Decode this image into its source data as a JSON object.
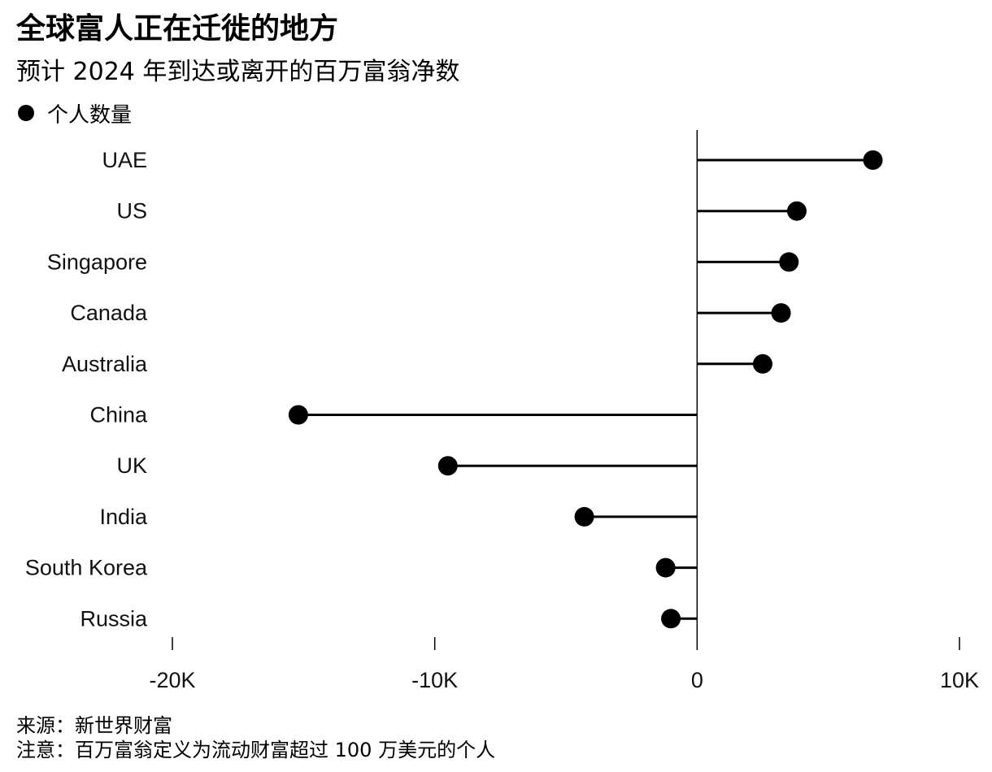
{
  "title": "全球富人正在迁徙的地方",
  "subtitle": "预计 2024 年到达或离开的百万富翁净数",
  "legend": {
    "label": "个人数量"
  },
  "source": "来源：新世界财富",
  "note": "注意：百万富翁定义为流动财富超过 100 万美元的个人",
  "chart_data": {
    "type": "lollipop",
    "orientation": "horizontal",
    "categories": [
      "UAE",
      "US",
      "Singapore",
      "Canada",
      "Australia",
      "China",
      "UK",
      "India",
      "South Korea",
      "Russia"
    ],
    "values": [
      6700,
      3800,
      3500,
      3200,
      2500,
      -15200,
      -9500,
      -4300,
      -1200,
      -1000
    ],
    "series": [
      {
        "name": "个人数量",
        "values": [
          6700,
          3800,
          3500,
          3200,
          2500,
          -15200,
          -9500,
          -4300,
          -1200,
          -1000
        ]
      }
    ],
    "xlim": [
      -20000,
      10000
    ],
    "xticks": [
      -20000,
      -10000,
      0,
      10000
    ],
    "xtick_labels": [
      "-20K",
      "-10K",
      "0",
      "10K"
    ],
    "grid": false,
    "legend_position": "top-left",
    "color": "#000000"
  }
}
